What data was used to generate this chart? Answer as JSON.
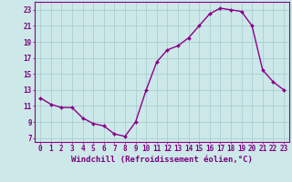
{
  "x": [
    0,
    1,
    2,
    3,
    4,
    5,
    6,
    7,
    8,
    9,
    10,
    11,
    12,
    13,
    14,
    15,
    16,
    17,
    18,
    19,
    20,
    21,
    22,
    23
  ],
  "y": [
    12.0,
    11.2,
    10.8,
    10.8,
    9.5,
    8.8,
    8.5,
    7.5,
    7.2,
    9.0,
    13.0,
    16.5,
    18.0,
    18.5,
    19.5,
    21.0,
    22.5,
    23.2,
    23.0,
    22.8,
    21.0,
    15.5,
    14.0,
    13.0
  ],
  "line_color": "#8b008b",
  "marker": "D",
  "markersize": 2.0,
  "bg_color": "#cce8e8",
  "grid_color": "#aad0d0",
  "xlabel": "Windchill (Refroidissement éolien,°C)",
  "ylabel_ticks": [
    7,
    9,
    11,
    13,
    15,
    17,
    19,
    21,
    23
  ],
  "ylim": [
    6.5,
    24.0
  ],
  "xlim": [
    -0.5,
    23.5
  ],
  "font_color": "#7b0080",
  "tick_fontsize": 5.5,
  "label_fontsize": 6.5,
  "linewidth": 1.0
}
